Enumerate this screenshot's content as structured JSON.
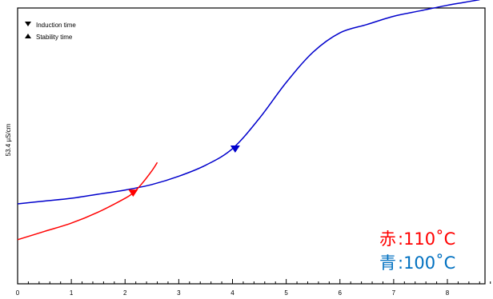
{
  "chart_data": {
    "type": "line",
    "title": "",
    "xlabel": "",
    "ylabel": "53.4 µS/cm",
    "xlim": [
      0,
      8.7
    ],
    "ylim": [
      0,
      1
    ],
    "x_ticks": [
      "0",
      "1",
      "2",
      "3",
      "4",
      "5",
      "6",
      "7",
      "8"
    ],
    "grid": false,
    "legend": {
      "placement": "top-left",
      "items": [
        {
          "marker": "triangle-down",
          "label": "Induction time"
        },
        {
          "marker": "triangle-up",
          "label": "Stability time"
        }
      ]
    },
    "series": [
      {
        "color": "#0000cc",
        "x": [
          0,
          0.5,
          1,
          1.5,
          2,
          2.5,
          3,
          3.5,
          4,
          4.5,
          5,
          5.5,
          6,
          6.5,
          7,
          7.5,
          8,
          8.3,
          8.6
        ],
        "y": [
          0.29,
          0.3,
          0.31,
          0.325,
          0.34,
          0.36,
          0.39,
          0.43,
          0.49,
          0.6,
          0.73,
          0.84,
          0.91,
          0.94,
          0.97,
          0.99,
          1.01,
          1.02,
          1.03
        ],
        "markers": [
          {
            "type": "induction",
            "x": 4.05,
            "y": 0.49
          }
        ]
      },
      {
        "color": "#ff0000",
        "x": [
          0,
          0.5,
          1,
          1.5,
          2,
          2.15,
          2.3,
          2.5,
          2.6
        ],
        "y": [
          0.16,
          0.19,
          0.22,
          0.26,
          0.31,
          0.33,
          0.36,
          0.41,
          0.44
        ],
        "markers": [
          {
            "type": "induction",
            "x": 2.15,
            "y": 0.33
          }
        ]
      }
    ],
    "annotations": [
      {
        "char": "赤",
        "text": ":110˚C",
        "color": "#ff0000"
      },
      {
        "char": "青",
        "text": ":100˚C",
        "color": "#0070c0"
      }
    ]
  }
}
